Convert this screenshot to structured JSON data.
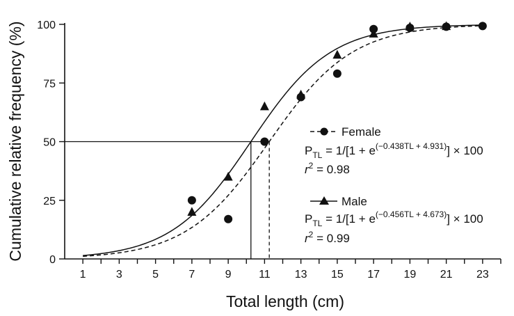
{
  "chart_data": {
    "type": "scatter",
    "title": "",
    "xlabel": "Total length (cm)",
    "ylabel": "Cumulative relative frequency (%)",
    "xlim": [
      0,
      24
    ],
    "ylim": [
      0,
      100
    ],
    "xticks": [
      1,
      3,
      5,
      7,
      9,
      11,
      13,
      15,
      17,
      19,
      21,
      23
    ],
    "yticks": [
      0,
      25,
      50,
      75,
      100
    ],
    "series": [
      {
        "name": "Female",
        "marker": "circle",
        "line_style": "dashed",
        "x": [
          7,
          9,
          11,
          13,
          15,
          17,
          19,
          21,
          23
        ],
        "y": [
          25,
          17,
          50,
          69,
          79,
          98,
          98.5,
          99,
          99.3
        ],
        "curve": {
          "a": -0.438,
          "b": 4.931,
          "tl_from": 1,
          "tl_to": 23
        },
        "l50": 11.26
      },
      {
        "name": "Male",
        "marker": "triangle",
        "line_style": "solid",
        "x": [
          7,
          9,
          11,
          13,
          15,
          17,
          19,
          21
        ],
        "y": [
          20,
          35,
          65,
          70,
          87,
          96,
          99,
          99.2
        ],
        "curve": {
          "a": -0.456,
          "b": 4.673,
          "tl_from": 1,
          "tl_to": 23
        },
        "l50": 10.25
      }
    ],
    "reference_y": 50,
    "legend": {
      "placement": "center-right",
      "female": {
        "label": "Female",
        "eq_p": "P",
        "eq_sub": "TL",
        "eq_mid": " = 1/[1 + e",
        "eq_exp": "(−0.438TL + 4.931)",
        "eq_end": "] × 100",
        "r_label": "r",
        "r_sup": "2",
        "r_value": " = 0.98"
      },
      "male": {
        "label": "Male",
        "eq_p": "P",
        "eq_sub": "TL",
        "eq_mid": " = 1/[1 + e",
        "eq_exp": "(−0.456TL + 4.673)",
        "eq_end": "] × 100",
        "r_label": "r",
        "r_sup": "2",
        "r_value": " = 0.99"
      }
    }
  }
}
